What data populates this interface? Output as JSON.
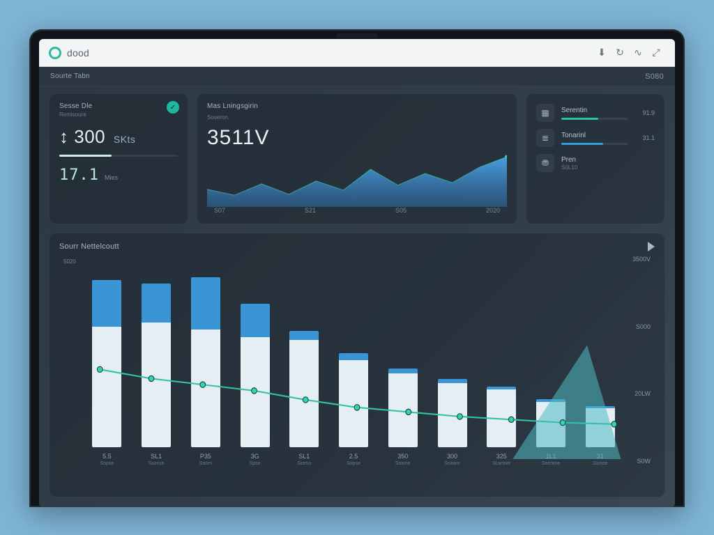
{
  "brand": {
    "name": "dood"
  },
  "toolbar_icons": [
    "download-icon",
    "refresh-icon",
    "link-icon",
    "expand-icon"
  ],
  "subheader": {
    "left": "Sourte Tabn",
    "right": "S080"
  },
  "kpi_card": {
    "title": "Sesse Dle",
    "subtitle": "Remisoure",
    "badge_glyph": "✓",
    "value": "300",
    "value_prefix": "↕",
    "unit": "SKts",
    "progress_pct": 44,
    "secondary": "17.1",
    "secondary_label": "Mies"
  },
  "area_chart": {
    "type": "area",
    "header": "Mas Lningsgirin",
    "sub": "Soseron.",
    "metric": "3511V",
    "points_x": [
      0,
      1,
      2,
      3,
      4,
      5,
      6,
      7,
      8,
      9,
      10,
      11
    ],
    "points_y": [
      42,
      28,
      55,
      30,
      62,
      40,
      90,
      52,
      80,
      58,
      95,
      120
    ],
    "x_labels": [
      "S07",
      "S21",
      "S05",
      "2020"
    ],
    "ylim": [
      0,
      130
    ],
    "fill_top": "#4a9fe0",
    "fill_bottom": "#2f6fa8",
    "line_color": "#3fcab1",
    "marker_color": "#2fd3b5",
    "background": "transparent"
  },
  "side_card": {
    "rows": [
      {
        "icon": "grid-icon",
        "label": "Serentin",
        "value": "91.9",
        "pct": 55,
        "color": "#25c4a7"
      },
      {
        "icon": "list-icon",
        "label": "Tonarinl",
        "value": "31.1",
        "pct": 62,
        "color": "#2f9fd8"
      },
      {
        "icon": "coins-icon",
        "label": "Pren",
        "value": "",
        "pct": 0,
        "color": "#25c4a7",
        "sub": "S0L10"
      }
    ]
  },
  "combo_chart": {
    "type": "bar+line",
    "title": "Sourr Nettelcoutt",
    "left_tick": "5020",
    "bar_top_color": "#3a95d6",
    "bar_bottom_color": "#e5eef3",
    "line_color": "#34c2a6",
    "marker_color": "#2fd3b5",
    "area_fill": "#4fb9c5",
    "y_labels_right": [
      "3500V",
      "S000",
      "20LW",
      "S0W"
    ],
    "ylim": [
      0,
      260
    ],
    "bars": [
      {
        "x": "5.5",
        "sub": "Sopse",
        "top": 70,
        "bottom": 180
      },
      {
        "x": "SL1",
        "sub": "Ssossn",
        "top": 58,
        "bottom": 186
      },
      {
        "x": "P35",
        "sub": "Sasrn",
        "top": 78,
        "bottom": 176
      },
      {
        "x": "3G",
        "sub": "Spsn",
        "top": 50,
        "bottom": 164
      },
      {
        "x": "SL1",
        "sub": "Ssenn",
        "top": 14,
        "bottom": 160
      },
      {
        "x": "2.5",
        "sub": "Sopse",
        "top": 10,
        "bottom": 130
      },
      {
        "x": "350",
        "sub": "Sasme",
        "top": 8,
        "bottom": 110
      },
      {
        "x": "300",
        "sub": "Sseare",
        "top": 6,
        "bottom": 96
      },
      {
        "x": "325",
        "sub": "Scartner",
        "top": 5,
        "bottom": 86
      },
      {
        "x": "1L1",
        "sub": "Seerene",
        "top": 4,
        "bottom": 68
      },
      {
        "x": "31",
        "sub": "Ssmse",
        "top": 3,
        "bottom": 58
      }
    ],
    "line_points_y": [
      118,
      106,
      98,
      90,
      78,
      68,
      62,
      56,
      52,
      48,
      46
    ]
  },
  "colors": {
    "panel_bg": "#2d3842",
    "card_border": "rgba(255,255,255,.06)",
    "text_muted": "#8a98a4"
  }
}
